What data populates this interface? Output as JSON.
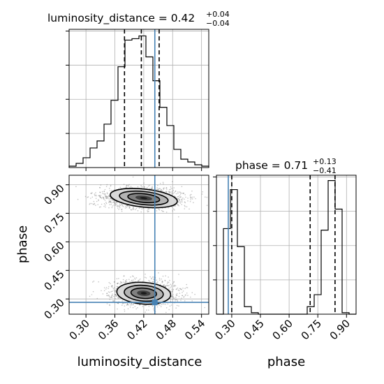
{
  "chart_data": {
    "type": "corner",
    "parameters": [
      "luminosity_distance",
      "phase"
    ],
    "truths": {
      "luminosity_distance": 0.443,
      "phase": 0.282
    },
    "panels": [
      {
        "type": "histogram",
        "parameter": "luminosity_distance",
        "title": {
          "text": "luminosity_distance = 0.42",
          "upper": "+0.04",
          "lower": "−0.04"
        },
        "xlim": [
          0.265,
          0.555
        ],
        "bin_edges": [
          0.265,
          0.2795,
          0.294,
          0.3085,
          0.323,
          0.3375,
          0.352,
          0.3665,
          0.381,
          0.3955,
          0.41,
          0.4245,
          0.439,
          0.4535,
          0.468,
          0.4825,
          0.497,
          0.5115,
          0.526,
          0.5405,
          0.555
        ],
        "counts": [
          0.01,
          0.03,
          0.07,
          0.14,
          0.19,
          0.31,
          0.48,
          0.72,
          0.91,
          0.92,
          0.94,
          0.79,
          0.62,
          0.43,
          0.3,
          0.13,
          0.06,
          0.04,
          0.02,
          0.01
        ],
        "quantiles": [
          0.38,
          0.415,
          0.452
        ],
        "grid": true,
        "yticks_count": 4
      },
      {
        "type": "scatter_density",
        "x_parameter": "luminosity_distance",
        "y_parameter": "phase",
        "xlabel": "luminosity_distance",
        "ylabel": "phase",
        "xlim": [
          0.265,
          0.555
        ],
        "ylim": [
          0.22,
          0.95
        ],
        "xticks": [
          "0.30",
          "0.36",
          "0.42",
          "0.48",
          "0.54"
        ],
        "yticks": [
          "0.30",
          "0.45",
          "0.60",
          "0.75",
          "0.90"
        ],
        "modes": [
          {
            "center": [
              0.42,
              0.83
            ],
            "spread": [
              0.035,
              0.025
            ]
          },
          {
            "center": [
              0.42,
              0.33
            ],
            "spread": [
              0.028,
              0.03
            ]
          }
        ],
        "grid": true
      },
      {
        "type": "histogram",
        "parameter": "phase",
        "title": {
          "text": "phase = 0.71",
          "upper": "+0.13",
          "lower": "−0.41"
        },
        "xlabel": "phase",
        "xlim": [
          0.22,
          0.95
        ],
        "xticks": [
          "0.30",
          "0.45",
          "0.60",
          "0.75",
          "0.90"
        ],
        "bin_edges": [
          0.22,
          0.2565,
          0.293,
          0.3295,
          0.366,
          0.4025,
          0.439,
          0.4755,
          0.512,
          0.5485,
          0.585,
          0.6215,
          0.658,
          0.6945,
          0.731,
          0.7675,
          0.804,
          0.8405,
          0.877,
          0.9135,
          0.95
        ],
        "counts": [
          0.0,
          0.57,
          0.83,
          0.45,
          0.05,
          0.01,
          0.0,
          0.0,
          0.0,
          0.0,
          0.0,
          0.0,
          0.0,
          0.05,
          0.13,
          0.56,
          0.89,
          0.7,
          0.01,
          0.0
        ],
        "quantiles": [
          0.3,
          0.71,
          0.84
        ],
        "grid": true
      }
    ],
    "colors": {
      "truth": "#4682b4",
      "hist": "#000000",
      "grid": "#b0b0b0",
      "density": "#404040"
    }
  }
}
